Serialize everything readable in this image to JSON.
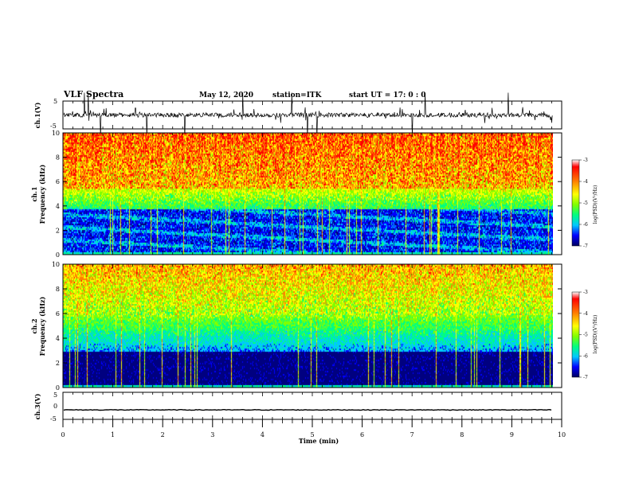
{
  "header": {
    "title": "VLF Spectra",
    "date": "May 12, 2020",
    "station": "station=ITK",
    "start_ut": "start UT =   17: 0 : 0"
  },
  "chart_data": [
    {
      "type": "line",
      "panel": "ch1-waveform",
      "ylabel": "ch.1(V)",
      "ylim": [
        -5,
        5
      ],
      "yticks": [
        "5",
        "-5"
      ],
      "xlim": [
        0,
        10
      ],
      "data_end": 9.82,
      "baseline": 0,
      "description_of_signal": "noisy waveform with impulsive spikes"
    },
    {
      "type": "heatmap",
      "panel": "ch1-spectrogram",
      "ylabel": "ch.1",
      "ylabel2": "Frequency (kHz)",
      "ylim": [
        0,
        10
      ],
      "yticks": [
        "0",
        "2",
        "4",
        "6",
        "8",
        "10"
      ],
      "xlim": [
        0,
        10
      ],
      "data_end": 9.82,
      "colorbar": {
        "label": "log(PSD)(V²/Hz)",
        "range": [
          -7,
          -3
        ],
        "ticks": [
          "-3",
          "-4",
          "-5",
          "-6",
          "-7"
        ]
      }
    },
    {
      "type": "heatmap",
      "panel": "ch2-spectrogram",
      "ylabel": "ch.2",
      "ylabel2": "Frequency (kHz)",
      "ylim": [
        0,
        10
      ],
      "yticks": [
        "0",
        "2",
        "4",
        "6",
        "8",
        "10"
      ],
      "xlim": [
        0,
        10
      ],
      "data_end": 9.82,
      "colorbar": {
        "label": "log(PSD)(V²/Hz)",
        "range": [
          -7,
          -3
        ],
        "ticks": [
          "-3",
          "-4",
          "-5",
          "-6",
          "-7"
        ]
      }
    },
    {
      "type": "line",
      "panel": "ch3-waveform",
      "ylabel": "ch.3(V)",
      "ylim": [
        -5,
        5
      ],
      "yticks": [
        "5",
        "0",
        "-5"
      ],
      "xlim": [
        0,
        10
      ],
      "data_end": 9.82,
      "baseline": -1.5,
      "xlabel": "Time (min)",
      "xticks": [
        "0",
        "1",
        "2",
        "3",
        "4",
        "5",
        "6",
        "7",
        "8",
        "9",
        "10"
      ]
    }
  ],
  "colors": {
    "colormap": [
      "#000080",
      "#0000ff",
      "#00c8ff",
      "#00ff80",
      "#80ff00",
      "#ffff00",
      "#ff8000",
      "#ff0000"
    ],
    "line": "#000000",
    "background": "#ffffff"
  }
}
